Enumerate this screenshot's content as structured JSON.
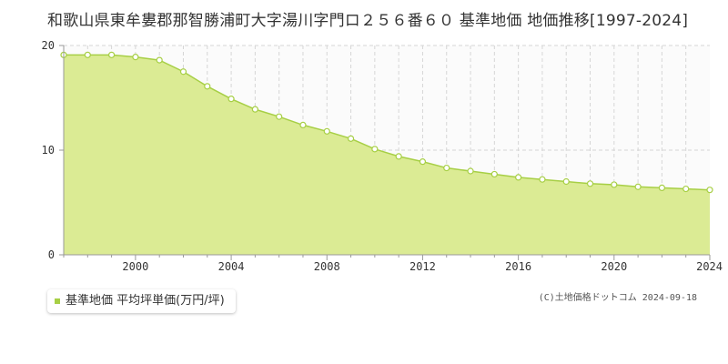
{
  "colors": {
    "area_fill": "#dbeb94",
    "line": "#a7cf45",
    "plot_bg": "#fbfbfb",
    "legend_swatch": "#a7cf45",
    "grid": "#d6d6d6",
    "axis": "#999999"
  },
  "title": "和歌山県東牟婁郡那智勝浦町大字湯川字門ロ２５６番６０ 基準地価 地価推移[1997-2024]",
  "legend": {
    "label": "基準地価 平均坪単価(万円/坪)"
  },
  "copyright": "(C)土地価格ドットコム 2024-09-18",
  "chart_data": {
    "type": "area",
    "title": "和歌山県東牟婁郡那智勝浦町大字湯川字門ロ２５６番６０ 基準地価 地価推移[1997-2024]",
    "xlabel": "",
    "ylabel": "",
    "xlim": [
      1997,
      2024
    ],
    "ylim": [
      0,
      20
    ],
    "y_ticks": [
      0,
      10,
      20
    ],
    "x_ticks": [
      2000,
      2004,
      2008,
      2012,
      2016,
      2020,
      2024
    ],
    "grid": true,
    "legend_position": "bottom-left",
    "series": [
      {
        "name": "基準地価 平均坪単価(万円/坪)",
        "x": [
          1997,
          1998,
          1999,
          2000,
          2001,
          2002,
          2003,
          2004,
          2005,
          2006,
          2007,
          2008,
          2009,
          2010,
          2011,
          2012,
          2013,
          2014,
          2015,
          2016,
          2017,
          2018,
          2019,
          2020,
          2021,
          2022,
          2023,
          2024
        ],
        "values": [
          19.1,
          19.1,
          19.1,
          18.9,
          18.6,
          17.5,
          16.1,
          14.9,
          13.9,
          13.2,
          12.4,
          11.8,
          11.1,
          10.1,
          9.4,
          8.9,
          8.3,
          8.0,
          7.7,
          7.4,
          7.2,
          7.0,
          6.8,
          6.7,
          6.5,
          6.4,
          6.3,
          6.2
        ]
      }
    ]
  }
}
